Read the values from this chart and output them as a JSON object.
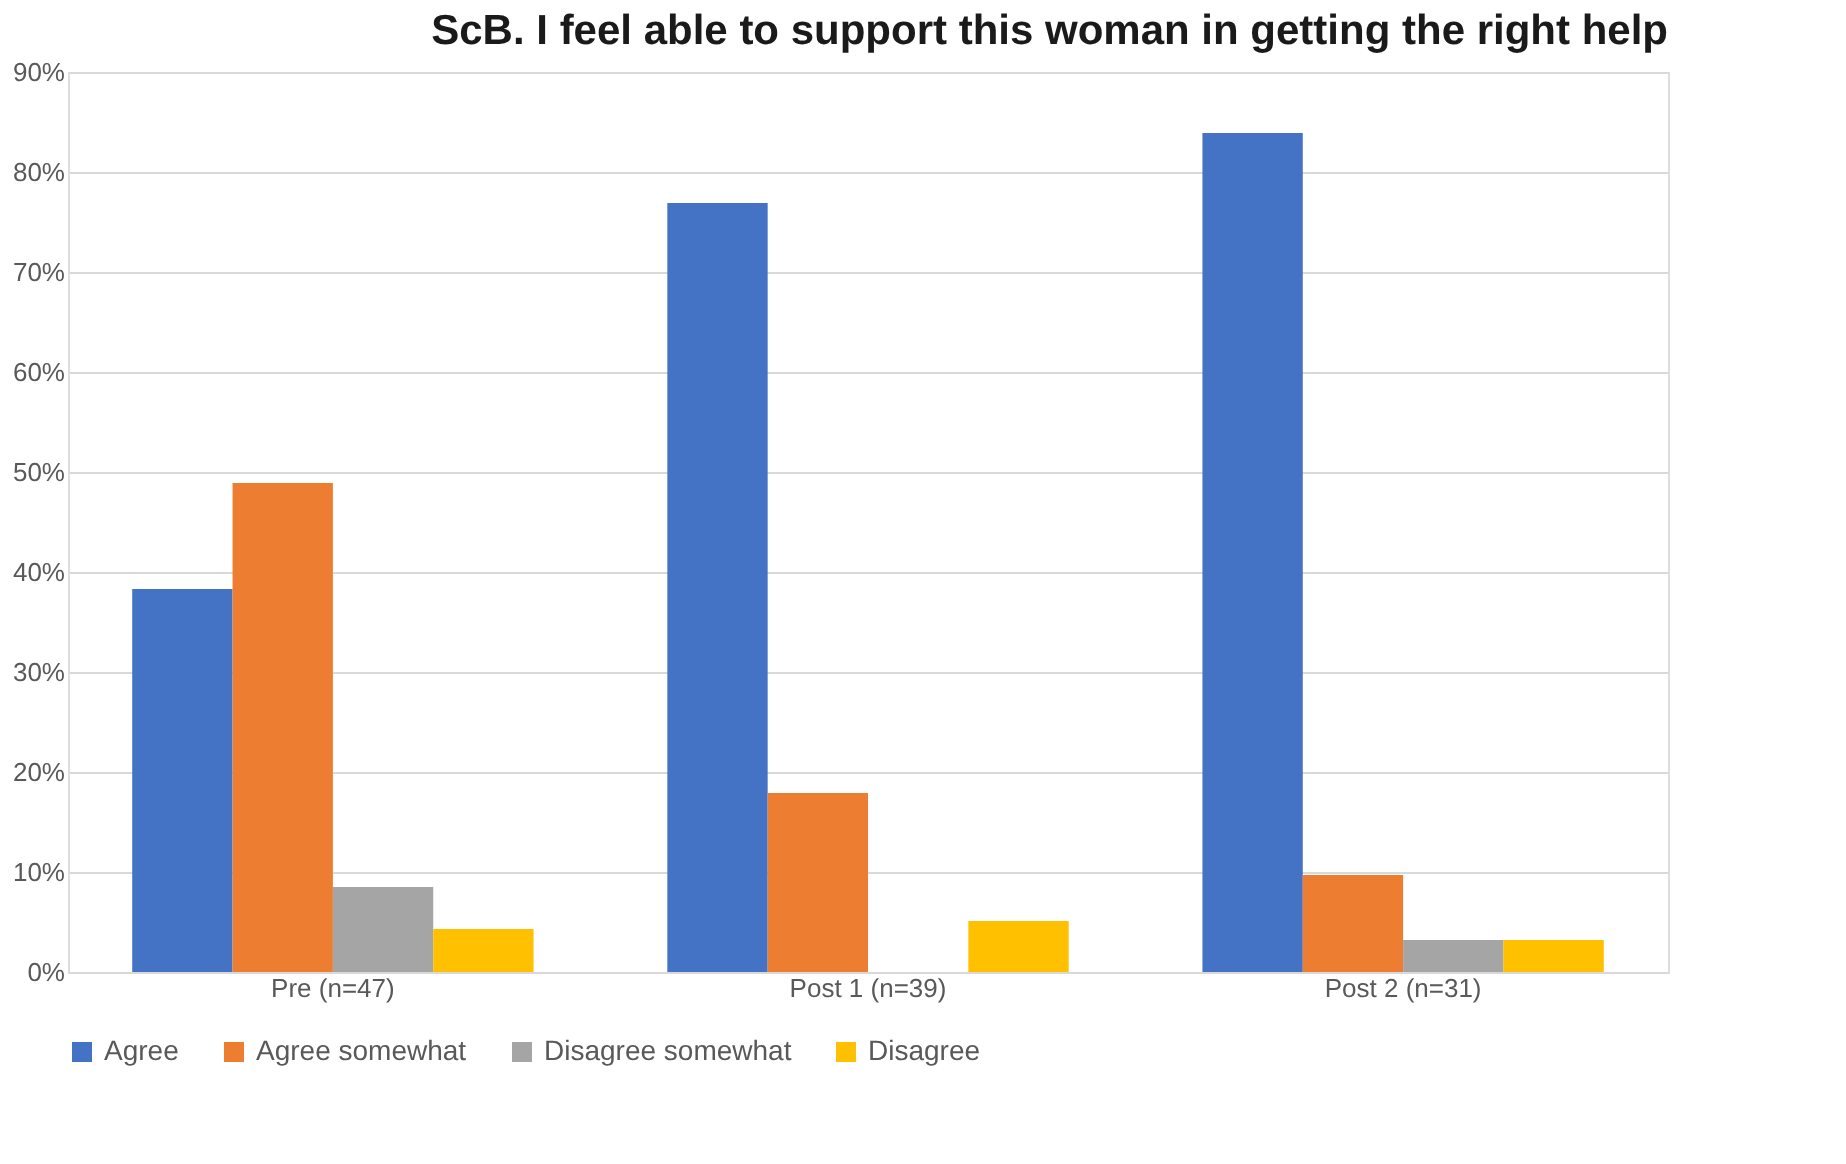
{
  "chart_data": {
    "type": "bar",
    "title": "ScB. I feel able to support this woman in getting the right help",
    "categories": [
      "Pre (n=47)",
      "Post 1 (n=39)",
      "Post 2 (n=31)"
    ],
    "series": [
      {
        "name": "Agree",
        "color": "#4472c4",
        "values": [
          38.3,
          76.9,
          83.9
        ]
      },
      {
        "name": "Agree somewhat",
        "color": "#ed7d31",
        "values": [
          48.9,
          17.9,
          9.7
        ]
      },
      {
        "name": "Disagree somewhat",
        "color": "#a5a5a5",
        "values": [
          8.5,
          0,
          3.2
        ]
      },
      {
        "name": "Disagree",
        "color": "#ffc000",
        "values": [
          4.3,
          5.1,
          3.2
        ]
      }
    ],
    "ylim": [
      0,
      90
    ],
    "yticks": [
      {
        "value": 0,
        "label": "0%"
      },
      {
        "value": 10,
        "label": "10%"
      },
      {
        "value": 20,
        "label": "20%"
      },
      {
        "value": 30,
        "label": "30%"
      },
      {
        "value": 40,
        "label": "40%"
      },
      {
        "value": 50,
        "label": "50%"
      },
      {
        "value": 60,
        "label": "60%"
      },
      {
        "value": 70,
        "label": "70%"
      },
      {
        "value": 80,
        "label": "80%"
      },
      {
        "value": 90,
        "label": "90%"
      }
    ],
    "grid": "y",
    "legend": "bottom"
  }
}
